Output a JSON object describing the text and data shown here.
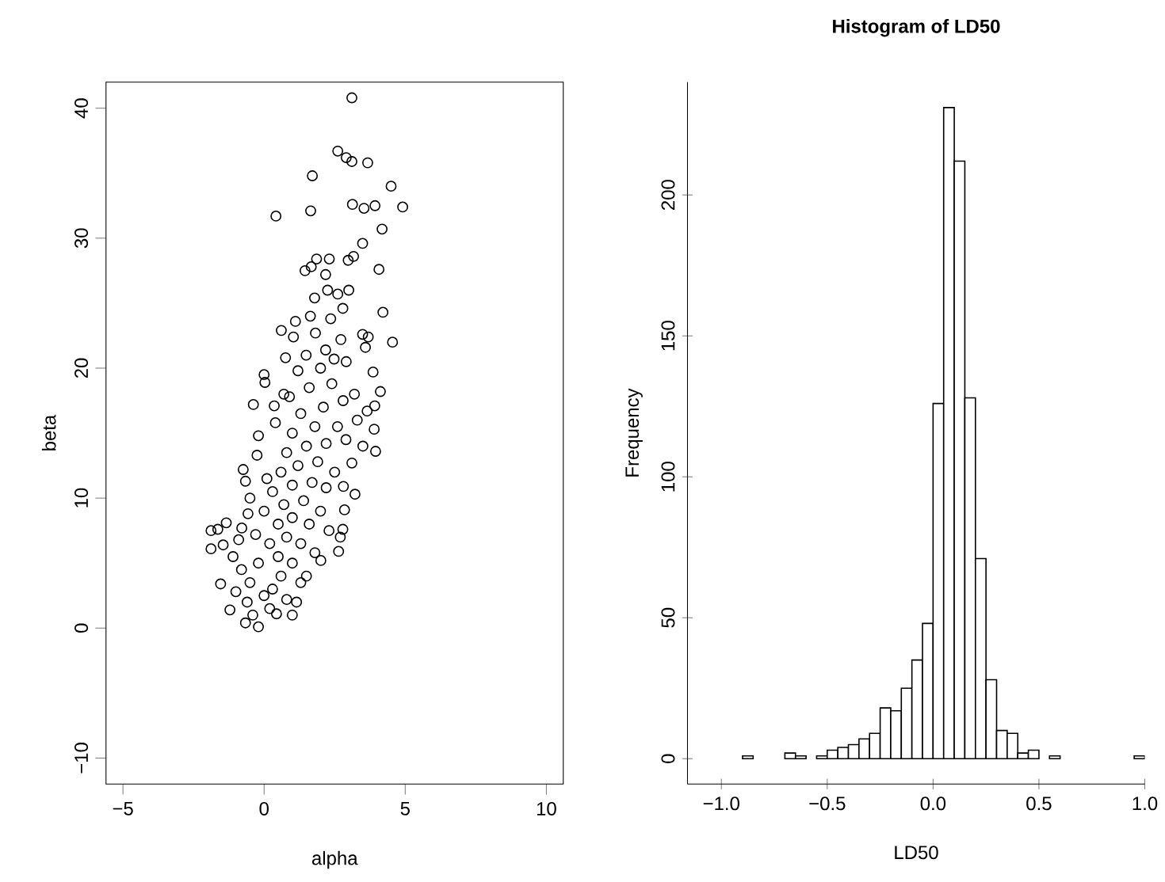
{
  "chart_data": [
    {
      "type": "scatter",
      "xlabel": "alpha",
      "ylabel": "beta",
      "color": "#000000",
      "marker": "circle",
      "xlim": [
        -5.6,
        10.6
      ],
      "ylim": [
        -12,
        42
      ],
      "xticks": [
        {
          "value": -5,
          "label": "−5"
        },
        0,
        5,
        10
      ],
      "yticks": [
        {
          "value": -10,
          "label": "−10"
        },
        0,
        10,
        20,
        30,
        40
      ],
      "x": [
        3.11,
        2.61,
        2.91,
        3.11,
        3.67,
        1.71,
        4.5,
        0.42,
        1.65,
        3.13,
        3.54,
        3.93,
        4.91,
        4.18,
        3.49,
        1.45,
        1.67,
        1.86,
        2.31,
        2.18,
        2.98,
        3.17,
        4.07,
        1.79,
        2.25,
        2.61,
        3.0,
        2.79,
        4.21,
        1.64,
        1.11,
        0.61,
        1.04,
        1.82,
        2.36,
        2.72,
        3.49,
        3.69,
        4.55,
        3.59,
        0.76,
        1.49,
        2.18,
        2.48,
        2.91,
        -0.38,
        0.0,
        0.03,
        3.86,
        4.12,
        3.92,
        3.65,
        3.9,
        3.95,
        3.5,
        3.11,
        2.81,
        3.22,
        2.85,
        2.79,
        2.7,
        2.64,
        2.01,
        1.3,
        1.15,
        1.0,
        0.44,
        -0.2,
        -0.66,
        -1.21,
        -1.54,
        -1.45,
        -1.88,
        -1.88,
        -1.64,
        -1.34,
        -0.74,
        -0.66,
        -0.79,
        -0.57,
        -0.2,
        -0.25,
        0.36,
        0.7,
        0.0,
        0.3,
        -0.5,
        0.6,
        -0.2,
        0.5,
        1.0,
        -0.8,
        0.2,
        0.8,
        1.3,
        -0.3,
        0.5,
        1.0,
        1.6,
        0.0,
        0.7,
        1.4,
        2.0,
        0.3,
        1.0,
        1.7,
        2.2,
        0.6,
        1.2,
        1.9,
        2.5,
        0.8,
        1.5,
        2.2,
        1.0,
        1.8,
        2.6,
        0.4,
        1.3,
        2.1,
        2.8,
        0.9,
        1.6,
        2.4,
        3.2,
        1.2,
        2.0,
        -0.6,
        -1.0,
        0.8,
        0.2,
        -0.4,
        1.5,
        1.8,
        2.3,
        -1.1,
        -0.9,
        0.1,
        -0.5,
        2.9,
        3.3
      ],
      "values": [
        40.8,
        36.7,
        36.2,
        35.9,
        35.8,
        34.8,
        34.0,
        31.7,
        32.1,
        32.6,
        32.3,
        32.5,
        32.4,
        30.7,
        29.6,
        27.5,
        27.8,
        28.4,
        28.4,
        27.2,
        28.3,
        28.6,
        27.6,
        25.4,
        26.0,
        25.7,
        26.0,
        24.6,
        24.3,
        24.0,
        23.6,
        22.9,
        22.4,
        22.7,
        23.8,
        22.2,
        22.6,
        22.4,
        22.0,
        21.6,
        20.8,
        21.0,
        21.4,
        20.7,
        20.5,
        17.2,
        19.5,
        18.9,
        19.7,
        18.2,
        17.1,
        16.7,
        15.3,
        13.6,
        14.0,
        12.7,
        10.9,
        10.3,
        9.1,
        7.6,
        7.0,
        5.9,
        5.2,
        3.5,
        2.0,
        1.0,
        1.1,
        0.1,
        0.4,
        1.4,
        3.4,
        6.4,
        6.1,
        7.5,
        7.6,
        8.1,
        12.2,
        11.3,
        7.7,
        8.8,
        14.8,
        13.3,
        17.1,
        18.0,
        2.5,
        3.0,
        3.5,
        4.0,
        5.0,
        5.5,
        5.0,
        4.5,
        6.5,
        7.0,
        6.5,
        7.2,
        8.0,
        8.5,
        8.0,
        9.0,
        9.5,
        9.8,
        9.0,
        10.5,
        11.0,
        11.2,
        10.8,
        12.0,
        12.5,
        12.8,
        12.0,
        13.5,
        14.0,
        14.2,
        15.0,
        15.5,
        15.5,
        15.8,
        16.5,
        17.0,
        17.5,
        17.8,
        18.5,
        18.8,
        18.0,
        19.8,
        20.0,
        2.0,
        2.8,
        2.2,
        1.5,
        1.0,
        4.0,
        5.8,
        7.5,
        5.5,
        6.8,
        11.5,
        10.0,
        14.5,
        16.0
      ]
    },
    {
      "type": "histogram",
      "title": "Histogram of LD50",
      "xlabel": "LD50",
      "ylabel": "Frequency",
      "color": "#ffffff",
      "xlim": [
        -1.16,
        1.0
      ],
      "ylim": [
        -9,
        240
      ],
      "xticks": [
        {
          "value": -1,
          "label": "−1.0"
        },
        {
          "value": -0.5,
          "label": "−0.5"
        },
        {
          "value": 0,
          "label": "0.0"
        },
        {
          "value": 0.5,
          "label": "0.5"
        },
        {
          "value": 1,
          "label": "1.0"
        }
      ],
      "yticks": [
        0,
        50,
        100,
        150,
        200
      ],
      "bins": [
        -1.0,
        -0.95,
        -0.9,
        -0.85,
        -0.8,
        -0.75,
        -0.7,
        -0.65,
        -0.6,
        -0.55,
        -0.5,
        -0.45,
        -0.4,
        -0.35,
        -0.3,
        -0.25,
        -0.2,
        -0.15,
        -0.1,
        -0.05,
        0.0,
        0.05,
        0.1,
        0.15,
        0.2,
        0.25,
        0.3,
        0.35,
        0.4,
        0.45,
        0.5,
        0.55,
        0.6,
        0.65,
        0.7,
        0.75,
        0.8,
        0.85,
        0.9,
        0.95,
        1.0
      ],
      "values": [
        0,
        0,
        1,
        0,
        0,
        0,
        2,
        1,
        0,
        1,
        3,
        4,
        5,
        7,
        9,
        18,
        17,
        25,
        35,
        48,
        126,
        231,
        212,
        128,
        71,
        28,
        10,
        9,
        2,
        3,
        0,
        1,
        0,
        0,
        0,
        0,
        0,
        0,
        0,
        1
      ]
    }
  ]
}
